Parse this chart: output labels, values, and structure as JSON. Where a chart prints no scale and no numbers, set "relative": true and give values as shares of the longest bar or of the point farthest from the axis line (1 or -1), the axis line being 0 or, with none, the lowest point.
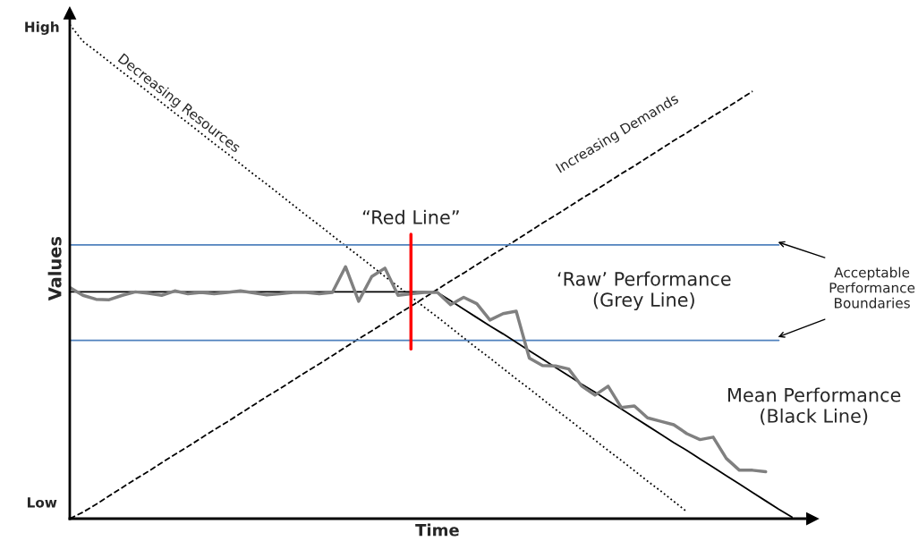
{
  "chart_data": {
    "type": "line",
    "xlabel": "Time",
    "ylabel": "Values",
    "tick_labels": false,
    "relative": true,
    "categories": [
      null,
      null,
      null,
      null,
      null,
      null,
      null,
      null,
      null,
      null,
      null,
      null,
      null,
      null,
      null,
      null,
      null,
      null,
      null,
      null,
      null,
      null,
      null,
      null,
      null,
      null,
      null,
      null,
      null,
      null,
      null,
      null,
      null,
      null,
      null,
      null,
      null,
      null,
      null,
      null,
      null,
      null,
      null,
      null,
      null,
      null,
      null,
      null,
      null,
      null,
      null,
      null,
      null,
      null,
      null,
      null,
      null
    ],
    "series": [
      {
        "color": "#000000",
        "line_style": "dotted",
        "values": [
          1.0,
          0.966,
          0.946,
          0.925,
          0.904,
          0.884,
          0.863,
          0.842,
          0.821,
          0.801,
          0.78,
          0.759,
          0.739,
          0.718,
          0.697,
          0.677,
          0.656,
          0.635,
          0.614,
          0.594,
          0.573,
          0.552,
          0.532,
          0.511,
          0.49,
          0.47,
          0.449,
          0.428,
          0.408,
          0.387,
          0.366,
          0.345,
          0.325,
          0.304,
          0.283,
          0.263,
          0.242,
          0.221,
          0.201,
          0.18,
          0.159,
          0.138,
          0.118,
          0.097,
          0.076,
          0.056,
          0.035,
          0.014,
          null,
          null,
          null,
          null,
          null,
          null,
          null,
          null,
          null
        ]
      },
      {
        "color": "#000000",
        "line_style": "dashed",
        "values": [
          0.0,
          0.013,
          0.029,
          0.046,
          0.063,
          0.08,
          0.096,
          0.113,
          0.13,
          0.146,
          0.163,
          0.18,
          0.196,
          0.213,
          0.23,
          0.247,
          0.263,
          0.28,
          0.297,
          0.313,
          0.33,
          0.347,
          0.364,
          0.38,
          0.397,
          0.414,
          0.43,
          0.447,
          0.464,
          0.481,
          0.497,
          0.514,
          0.531,
          0.547,
          0.564,
          0.581,
          0.598,
          0.614,
          0.631,
          0.648,
          0.664,
          0.681,
          0.698,
          0.714,
          0.731,
          0.748,
          0.765,
          0.781,
          0.798,
          0.815,
          0.831,
          0.848,
          0.865,
          null,
          null,
          null,
          null
        ]
      },
      {
        "color": "#4f81bd",
        "line_style": "solid",
        "values": [
          0.554,
          0.554,
          0.554,
          0.554,
          0.554,
          0.554,
          0.554,
          0.554,
          0.554,
          0.554,
          0.554,
          0.554,
          0.554,
          0.554,
          0.554,
          0.554,
          0.554,
          0.554,
          0.554,
          0.554,
          0.554,
          0.554,
          0.554,
          0.554,
          0.554,
          0.554,
          0.554,
          0.554,
          0.554,
          0.554,
          0.554,
          0.554,
          0.554,
          0.554,
          0.554,
          0.554,
          0.554,
          0.554,
          0.554,
          0.554,
          0.554,
          0.554,
          0.554,
          0.554,
          0.554,
          0.554,
          0.554,
          0.554,
          0.554,
          0.554,
          0.554,
          0.554,
          0.554,
          0.554,
          0.554,
          null,
          null
        ]
      },
      {
        "color": "#4f81bd",
        "line_style": "solid",
        "values": [
          0.361,
          0.361,
          0.361,
          0.361,
          0.361,
          0.361,
          0.361,
          0.361,
          0.361,
          0.361,
          0.361,
          0.361,
          0.361,
          0.361,
          0.361,
          0.361,
          0.361,
          0.361,
          0.361,
          0.361,
          0.361,
          0.361,
          0.361,
          0.361,
          0.361,
          0.361,
          0.361,
          0.361,
          0.361,
          0.361,
          0.361,
          0.361,
          0.361,
          0.361,
          0.361,
          0.361,
          0.361,
          0.361,
          0.361,
          0.361,
          0.361,
          0.361,
          0.361,
          0.361,
          0.361,
          0.361,
          0.361,
          0.361,
          0.361,
          0.361,
          0.361,
          0.361,
          0.361,
          0.361,
          0.361,
          null,
          null
        ]
      },
      {
        "color": "#000000",
        "line_style": "solid",
        "values": [
          0.459,
          0.459,
          0.459,
          0.459,
          0.459,
          0.459,
          0.459,
          0.459,
          0.459,
          0.459,
          0.459,
          0.459,
          0.459,
          0.459,
          0.459,
          0.459,
          0.459,
          0.459,
          0.459,
          0.459,
          0.459,
          0.459,
          0.459,
          0.459,
          0.459,
          0.459,
          0.459,
          0.459,
          0.458,
          0.441,
          0.424,
          0.407,
          0.39,
          0.374,
          0.357,
          0.34,
          0.323,
          0.306,
          0.289,
          0.272,
          0.256,
          0.239,
          0.222,
          0.205,
          0.188,
          0.171,
          0.154,
          0.138,
          0.121,
          0.104,
          0.087,
          0.07,
          0.053,
          0.036,
          0.019,
          0.003,
          null
        ]
      },
      {
        "color": "#808080",
        "line_style": "solid",
        "values": [
          0.468,
          0.452,
          0.444,
          0.443,
          0.452,
          0.459,
          0.456,
          0.452,
          0.461,
          0.455,
          0.458,
          0.455,
          0.458,
          0.461,
          0.457,
          0.453,
          0.455,
          0.458,
          0.458,
          0.455,
          0.458,
          0.51,
          0.44,
          0.49,
          0.507,
          0.452,
          0.455,
          0.458,
          0.458,
          0.433,
          0.448,
          0.435,
          0.402,
          0.415,
          0.42,
          0.325,
          0.31,
          0.309,
          0.303,
          0.268,
          0.25,
          0.268,
          0.225,
          0.228,
          0.204,
          0.197,
          0.19,
          0.172,
          0.16,
          0.165,
          0.122,
          0.098,
          0.098,
          0.095,
          null,
          null,
          null
        ]
      }
    ],
    "annotations": [
      "Decreasing Resources",
      "Increasing Demands",
      "“Red Line”",
      "‘Raw’ Performance\n(Grey Line)",
      "Mean Performance\n(Black Line)",
      "Acceptable\nPerformance\nBoundaries",
      "High",
      "Low"
    ]
  }
}
